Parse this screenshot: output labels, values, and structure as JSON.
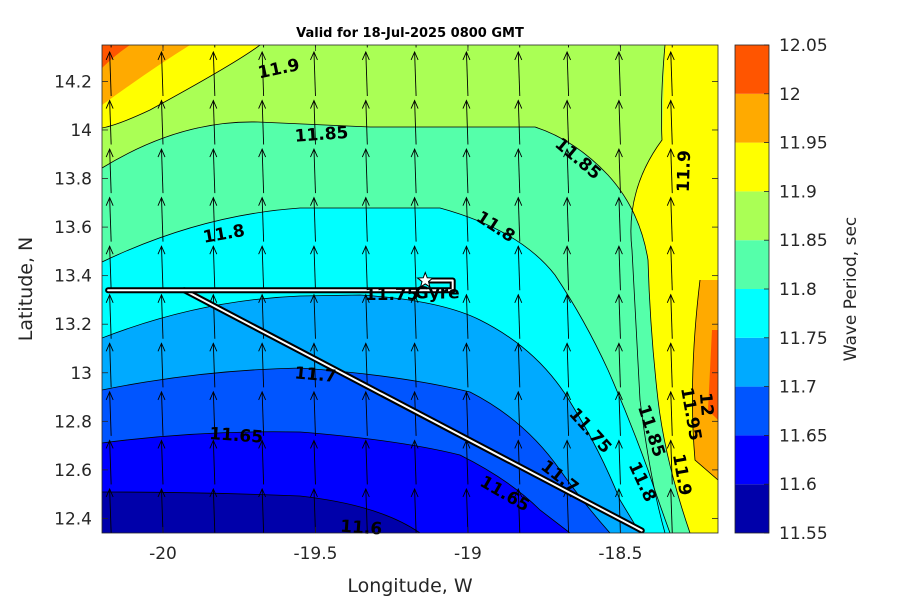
{
  "chart_data": {
    "type": "contour",
    "title": "Valid for 18-Jul-2025 0800 GMT",
    "xlabel": "Longitude, W",
    "ylabel": "Latitude, N",
    "colorbar_label": "Wave Period, sec",
    "xlim": [
      -20.2,
      -18.18
    ],
    "ylim": [
      12.34,
      14.35
    ],
    "x_ticks": [
      -20,
      -19.5,
      -19,
      -18.5
    ],
    "x_tick_labels": [
      "-20",
      "-19.5",
      "-19",
      "-18.5"
    ],
    "y_ticks": [
      12.4,
      12.6,
      12.8,
      13.0,
      13.2,
      13.4,
      13.6,
      13.8,
      14.0,
      14.2
    ],
    "y_tick_labels": [
      "12.4",
      "12.6",
      "12.8",
      "13",
      "13.2",
      "13.4",
      "13.6",
      "13.8",
      "14",
      "14.2"
    ],
    "colorbar": {
      "levels": [
        11.55,
        11.6,
        11.65,
        11.7,
        11.75,
        11.8,
        11.85,
        11.9,
        11.95,
        12.0,
        12.05
      ],
      "labels": [
        "11.55",
        "11.6",
        "11.65",
        "11.7",
        "11.75",
        "11.8",
        "11.85",
        "11.9",
        "11.95",
        "12",
        "12.05"
      ],
      "colors": [
        "#0000aa",
        "#0000ff",
        "#0055ff",
        "#00aaff",
        "#00ffff",
        "#55ffaa",
        "#aaff55",
        "#ffff00",
        "#ffaa00",
        "#ff5500"
      ]
    },
    "contour_labels": [
      {
        "text": "11.9",
        "x": -19.62,
        "y": 14.25,
        "angle": -12
      },
      {
        "text": "11.85",
        "x": -19.48,
        "y": 13.98,
        "angle": -4
      },
      {
        "text": "11.85",
        "x": -18.64,
        "y": 13.88,
        "angle": 40
      },
      {
        "text": "11.9",
        "x": -18.29,
        "y": 13.83,
        "angle": -88
      },
      {
        "text": "11.8",
        "x": -19.8,
        "y": 13.57,
        "angle": -10
      },
      {
        "text": "11.8",
        "x": -18.91,
        "y": 13.6,
        "angle": 33
      },
      {
        "text": "11.75",
        "x": -19.25,
        "y": 13.32,
        "angle": 0
      },
      {
        "text": "11.7",
        "x": -19.5,
        "y": 12.99,
        "angle": 5
      },
      {
        "text": "11.65",
        "x": -19.76,
        "y": 12.74,
        "angle": 4
      },
      {
        "text": "11.6",
        "x": -19.35,
        "y": 12.36,
        "angle": 4
      },
      {
        "text": "11.75",
        "x": -18.6,
        "y": 12.76,
        "angle": 48
      },
      {
        "text": "11.7",
        "x": -18.7,
        "y": 12.57,
        "angle": 38
      },
      {
        "text": "11.65",
        "x": -18.88,
        "y": 12.5,
        "angle": 30
      },
      {
        "text": "11.85",
        "x": -18.4,
        "y": 12.76,
        "angle": 72
      },
      {
        "text": "11.8",
        "x": -18.43,
        "y": 12.55,
        "angle": 65
      },
      {
        "text": "11.9",
        "x": -18.3,
        "y": 12.58,
        "angle": 80
      },
      {
        "text": "11.95",
        "x": -18.27,
        "y": 12.83,
        "angle": 80
      },
      {
        "text": "12",
        "x": -18.22,
        "y": 12.87,
        "angle": 85
      }
    ],
    "ship": {
      "name": "Gyre",
      "position": {
        "x": -19.14,
        "y": 13.38
      },
      "track": [
        [
          -20.18,
          13.34
        ],
        [
          -19.05,
          13.34
        ],
        [
          -19.05,
          13.38
        ],
        [
          -19.13,
          13.38
        ]
      ],
      "planned_route": [
        [
          -19.93,
          13.34
        ],
        [
          -18.43,
          12.35
        ]
      ]
    },
    "wind_arrows": {
      "x": [
        -20.17,
        -20.0,
        -19.83,
        -19.67,
        -19.5,
        -19.33,
        -19.17,
        -19.0,
        -18.83,
        -18.67,
        -18.5,
        -18.33
      ],
      "y": [
        12.34,
        12.54,
        12.74,
        12.94,
        13.14,
        13.34,
        13.54,
        13.74,
        13.94,
        14.14,
        14.34
      ],
      "direction": "north"
    }
  }
}
